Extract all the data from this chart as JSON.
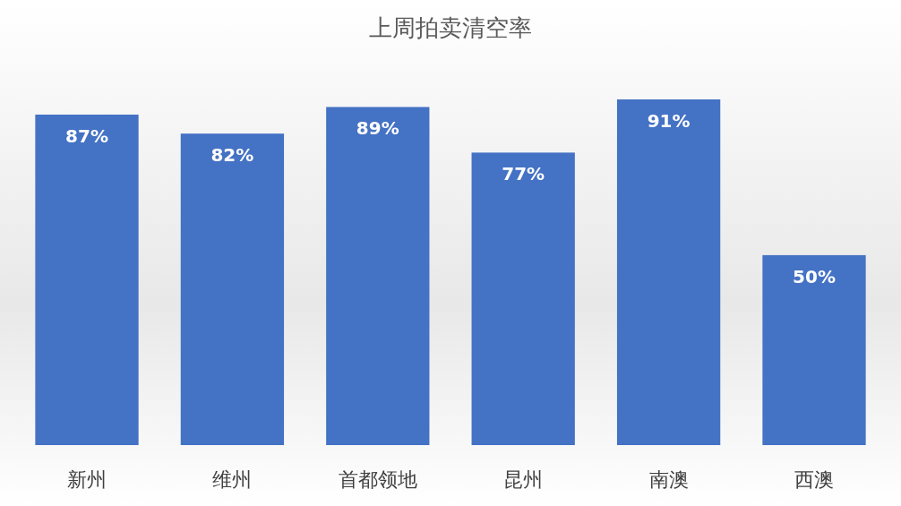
{
  "chart_data": {
    "type": "bar",
    "title": "上周拍卖清空率",
    "categories": [
      "新州",
      "维州",
      "首都领地",
      "昆州",
      "南澳",
      "西澳"
    ],
    "values": [
      87,
      82,
      89,
      77,
      91,
      50
    ],
    "value_labels": [
      "87%",
      "82%",
      "89%",
      "77%",
      "91%",
      "50%"
    ],
    "color": "#4472c4"
  }
}
